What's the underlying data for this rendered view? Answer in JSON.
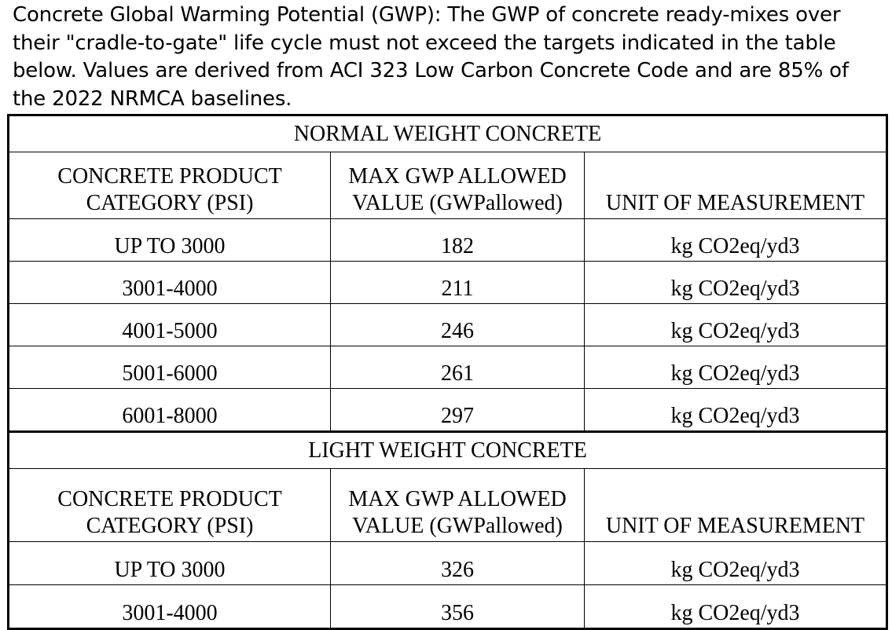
{
  "intro_text": "Concrete Global Warming Potential (GWP): The GWP of concrete ready-mixes over their \"cradle-to-gate\" life cycle must not exceed the targets indicated in the table below. Values are derived from ACI 323 Low Carbon Concrete Code and are 85% of the 2022 NRMCA baselines.",
  "table": {
    "normal": {
      "title": "NORMAL WEIGHT CONCRETE",
      "headers": {
        "category_line1": "CONCRETE PRODUCT",
        "category_line2": "CATEGORY (PSI)",
        "max_line1": "MAX GWP ALLOWED",
        "max_line2": "VALUE (GWPallowed)",
        "unit": "UNIT OF MEASUREMENT"
      },
      "rows": [
        {
          "category": "UP TO 3000",
          "max": "182",
          "unit": "kg CO2eq/yd3"
        },
        {
          "category": "3001-4000",
          "max": "211",
          "unit": "kg CO2eq/yd3"
        },
        {
          "category": "4001-5000",
          "max": "246",
          "unit": "kg CO2eq/yd3"
        },
        {
          "category": "5001-6000",
          "max": "261",
          "unit": "kg CO2eq/yd3"
        },
        {
          "category": "6001-8000",
          "max": "297",
          "unit": "kg CO2eq/yd3"
        }
      ]
    },
    "light": {
      "title": "LIGHT WEIGHT CONCRETE",
      "headers": {
        "category_line1": "CONCRETE PRODUCT",
        "category_line2": "CATEGORY (PSI)",
        "max_line1": "MAX GWP ALLOWED",
        "max_line2": "VALUE (GWPallowed)",
        "unit": "UNIT OF MEASUREMENT"
      },
      "rows": [
        {
          "category": "UP TO 3000",
          "max": "326",
          "unit": "kg CO2eq/yd3"
        },
        {
          "category": "3001-4000",
          "max": "356",
          "unit": "kg CO2eq/yd3"
        }
      ]
    }
  }
}
